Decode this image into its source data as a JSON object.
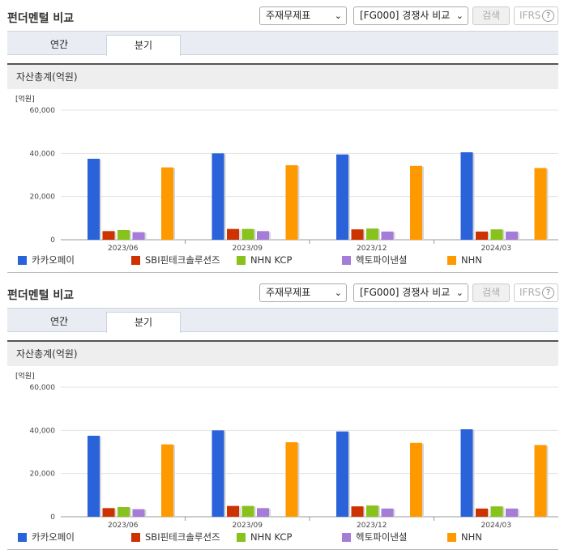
{
  "header": {
    "title": "펀더멘털 비교",
    "select1_value": "주재무제표",
    "select2_value": "[FG000] 경쟁사 비교",
    "search_label": "검색",
    "ifrs_label": "IFRS",
    "help_glyph": "?"
  },
  "tabs": [
    {
      "label": "연간"
    },
    {
      "label": "분기"
    }
  ],
  "section": {
    "title": "자산총계(억원)"
  },
  "chart_data": {
    "type": "bar",
    "unit_label": "[억원]",
    "categories": [
      "2023/06",
      "2023/09",
      "2023/12",
      "2024/03"
    ],
    "ylim": [
      0,
      60000
    ],
    "yticks": [
      "0",
      "20,000",
      "40,000",
      "60,000"
    ],
    "series": [
      {
        "name": "카카오페이",
        "color": "#2a63d9",
        "values": [
          37500,
          40000,
          39500,
          40500
        ]
      },
      {
        "name": "SBI핀테크솔루션즈",
        "color": "#cc3300",
        "values": [
          4000,
          5000,
          4800,
          3800
        ]
      },
      {
        "name": "NHN KCP",
        "color": "#88c21c",
        "values": [
          4500,
          5000,
          5200,
          4800
        ]
      },
      {
        "name": "헥토파이낸셜",
        "color": "#a57cd7",
        "values": [
          3500,
          4000,
          3800,
          3800
        ]
      },
      {
        "name": "NHN",
        "color": "#ff9900",
        "values": [
          33500,
          34500,
          34200,
          33200
        ]
      }
    ]
  }
}
